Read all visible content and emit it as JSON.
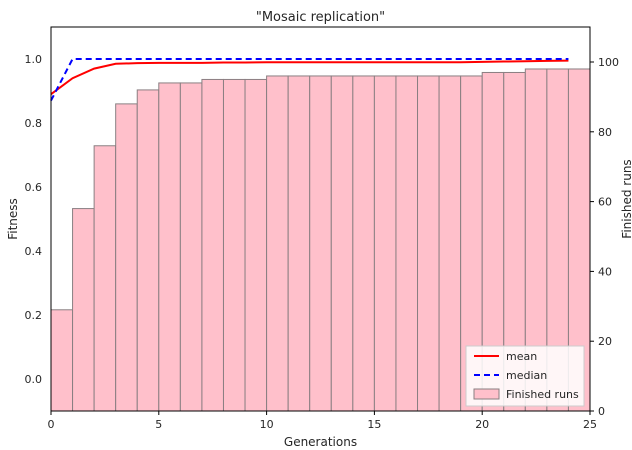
{
  "chart_data": {
    "type": "bar",
    "title": "\"Mosaic replication\"",
    "xlabel": "Generations",
    "ylabel": "Fitness",
    "y2label": "Finished runs",
    "xlim": [
      0,
      25
    ],
    "ylim": [
      -0.1,
      1.1
    ],
    "y2lim": [
      0,
      100
    ],
    "x_ticks": [
      0,
      5,
      10,
      15,
      20,
      25
    ],
    "y_ticks": [
      0.0,
      0.2,
      0.4,
      0.6,
      0.8,
      1.0
    ],
    "y_tick_labels": [
      "0.0",
      "0.2",
      "0.4",
      "0.6",
      "0.8",
      "1.0"
    ],
    "y2_ticks": [
      0,
      20,
      40,
      60,
      80,
      100
    ],
    "grid": false,
    "legend_position": "lower-right",
    "series": [
      {
        "name": "mean",
        "kind": "line",
        "axis": "left",
        "color": "#ff0000",
        "style": "solid",
        "x": [
          0,
          1,
          2,
          3,
          4,
          5,
          6,
          7,
          8,
          9,
          10,
          11,
          12,
          13,
          14,
          15,
          16,
          17,
          18,
          19,
          20,
          21,
          22,
          23,
          24
        ],
        "y": [
          0.89,
          0.94,
          0.97,
          0.985,
          0.987,
          0.988,
          0.988,
          0.988,
          0.989,
          0.989,
          0.99,
          0.99,
          0.99,
          0.99,
          0.99,
          0.99,
          0.99,
          0.99,
          0.99,
          0.99,
          0.991,
          0.992,
          0.993,
          0.994,
          0.995
        ]
      },
      {
        "name": "median",
        "kind": "line",
        "axis": "left",
        "color": "#0000ff",
        "style": "dashed",
        "x": [
          0,
          1,
          2,
          3,
          4,
          5,
          6,
          7,
          8,
          9,
          10,
          11,
          12,
          13,
          14,
          15,
          16,
          17,
          18,
          19,
          20,
          21,
          22,
          23,
          24
        ],
        "y": [
          0.87,
          1.0,
          1.0,
          1.0,
          1.0,
          1.0,
          1.0,
          1.0,
          1.0,
          1.0,
          1.0,
          1.0,
          1.0,
          1.0,
          1.0,
          1.0,
          1.0,
          1.0,
          1.0,
          1.0,
          1.0,
          1.0,
          1.0,
          1.0,
          1.0
        ]
      },
      {
        "name": "Finished runs",
        "kind": "bar",
        "axis": "right",
        "color": "#ffc0cb",
        "edge_color": "#8a7f82",
        "x": [
          0,
          1,
          2,
          3,
          4,
          5,
          6,
          7,
          8,
          9,
          10,
          11,
          12,
          13,
          14,
          15,
          16,
          17,
          18,
          19,
          20,
          21,
          22,
          23,
          24
        ],
        "values": [
          29,
          58,
          76,
          88,
          92,
          94,
          94,
          95,
          95,
          95,
          96,
          96,
          96,
          96,
          96,
          96,
          96,
          96,
          96,
          96,
          97,
          97,
          98,
          98,
          98
        ]
      }
    ]
  }
}
